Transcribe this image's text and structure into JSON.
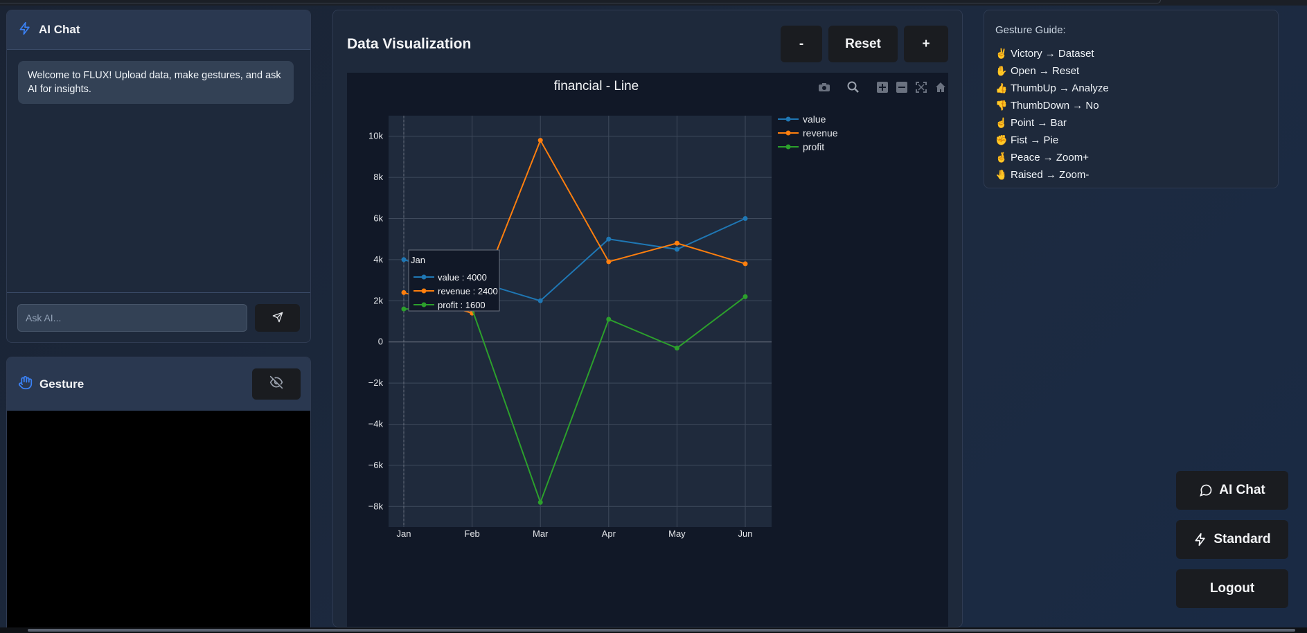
{
  "chat": {
    "title": "AI Chat",
    "welcome": "Welcome to FLUX! Upload data, make gestures, and ask AI for insights.",
    "input_placeholder": "Ask AI..."
  },
  "gesture": {
    "title": "Gesture"
  },
  "viz": {
    "title": "Data Visualization",
    "zoom_out_label": "-",
    "reset_label": "Reset",
    "zoom_in_label": "+"
  },
  "guide": {
    "title": "Gesture Guide:",
    "items": [
      {
        "emoji": "✌️",
        "text": "Victory → Dataset"
      },
      {
        "emoji": "✋",
        "text": "Open → Reset"
      },
      {
        "emoji": "👍",
        "text": "ThumbUp → Analyze"
      },
      {
        "emoji": "👎",
        "text": "ThumbDown → No"
      },
      {
        "emoji": "☝️",
        "text": "Point → Bar"
      },
      {
        "emoji": "✊",
        "text": "Fist → Pie"
      },
      {
        "emoji": "🤞",
        "text": "Peace → Zoom+"
      },
      {
        "emoji": "🤚",
        "text": "Raised → Zoom-"
      }
    ]
  },
  "fabs": {
    "ai_chat": "AI Chat",
    "standard": "Standard",
    "logout": "Logout"
  },
  "colors": {
    "value": "#1f77b4",
    "revenue": "#ff7f0e",
    "profit": "#2ca02c",
    "accent": "#3b82f6"
  },
  "chart_data": {
    "type": "line",
    "title": "financial - Line",
    "categories": [
      "Jan",
      "Feb",
      "Mar",
      "Apr",
      "May",
      "Jun"
    ],
    "series": [
      {
        "name": "value",
        "values": [
          4000,
          3000,
          2000,
          5000,
          4500,
          6000
        ]
      },
      {
        "name": "revenue",
        "values": [
          2400,
          1400,
          9800,
          3900,
          4800,
          3800
        ]
      },
      {
        "name": "profit",
        "values": [
          1600,
          1600,
          -7800,
          1100,
          -300,
          2200
        ]
      }
    ],
    "yticks": [
      "10k",
      "8k",
      "6k",
      "4k",
      "2k",
      "0",
      "−2k",
      "−4k",
      "−6k",
      "−8k"
    ],
    "ytick_values": [
      10000,
      8000,
      6000,
      4000,
      2000,
      0,
      -2000,
      -4000,
      -6000,
      -8000
    ],
    "ylim": [
      -9000,
      11000
    ],
    "legend": "top-right",
    "hover": {
      "title": "Jan",
      "lines": [
        "value : 4000",
        "revenue : 2400",
        "profit : 1600"
      ]
    }
  }
}
